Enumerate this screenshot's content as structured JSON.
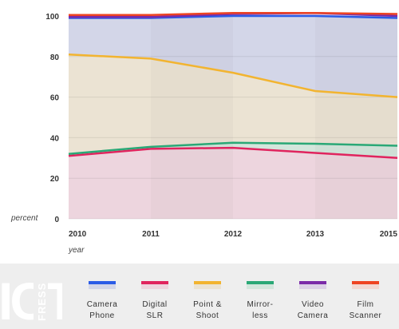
{
  "chart_data": {
    "type": "area",
    "x": [
      "2010",
      "2011",
      "2012",
      "2013",
      "2015"
    ],
    "ylabel": "percent",
    "xlabel": "year",
    "ylim": [
      0,
      100
    ],
    "yticks": [
      "0",
      "20",
      "40",
      "60",
      "80",
      "100"
    ],
    "stacked": true,
    "series": [
      {
        "name": "Digital SLR",
        "color": "#e0245e",
        "shade": "#edd5de",
        "values": [
          31,
          34.5,
          35,
          32.5,
          30
        ]
      },
      {
        "name": "Mirrorless",
        "color": "#2aa876",
        "shade": "#d3e6dc",
        "values": [
          32,
          35.5,
          37.5,
          37,
          36
        ]
      },
      {
        "name": "Point & Shoot",
        "color": "#f2b430",
        "shade": "#ebe3d3",
        "values": [
          81,
          79,
          72,
          63,
          60
        ]
      },
      {
        "name": "Camera Phone",
        "color": "#2b5ce6",
        "shade": "#d3d6e8",
        "values": [
          99,
          99,
          100,
          100,
          99
        ]
      },
      {
        "name": "Video Camera",
        "color": "#7b2aa8",
        "shade": "#dcd0e6",
        "values": [
          99.5,
          99.5,
          101,
          101.5,
          100
        ]
      },
      {
        "name": "Film Scanner",
        "color": "#ee4422",
        "shade": "#f2d8d2",
        "values": [
          100.5,
          100.5,
          101.5,
          101.5,
          101
        ]
      }
    ]
  },
  "legend": [
    {
      "line1": "Camera",
      "line2": "Phone",
      "color": "#2b5ce6",
      "shade": "#d3d6e8"
    },
    {
      "line1": "Digital",
      "line2": "SLR",
      "color": "#e0245e",
      "shade": "#edd5de"
    },
    {
      "line1": "Point &",
      "line2": "Shoot",
      "color": "#f2b430",
      "shade": "#ebe3d3"
    },
    {
      "line1": "Mirror-",
      "line2": "less",
      "color": "#2aa876",
      "shade": "#d3e6dc"
    },
    {
      "line1": "Video",
      "line2": "Camera",
      "color": "#7b2aa8",
      "shade": "#dcd0e6"
    },
    {
      "line1": "Film",
      "line2": "Scanner",
      "color": "#ee4422",
      "shade": "#f2d8d2"
    }
  ],
  "logo": {
    "line1": "ICT",
    "line2": "FRESS"
  }
}
